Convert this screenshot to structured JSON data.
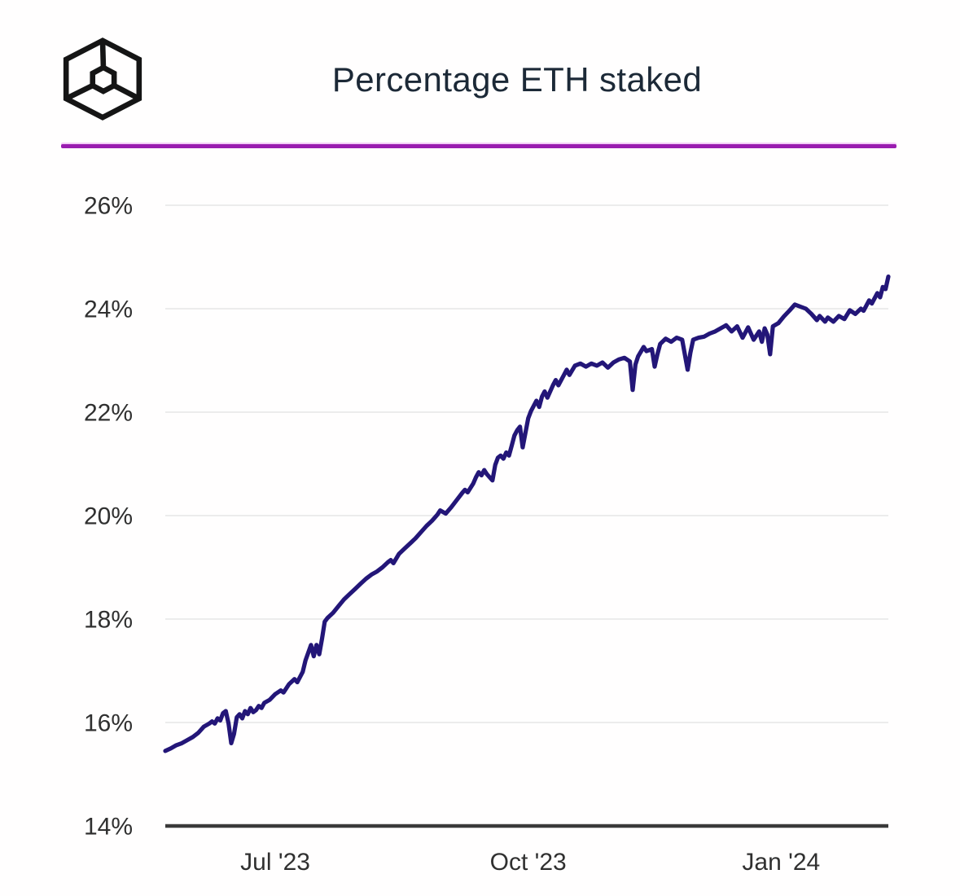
{
  "header": {
    "title": "Percentage ETH staked",
    "logo": "cube-wireframe-icon",
    "divider_color": "#9a1cb0"
  },
  "colors": {
    "background": "#ffffff",
    "title_text": "#1c2937",
    "tick_text": "#303030",
    "gridline": "#ececec",
    "axis_line": "#3a3a3a",
    "series_line": "#231678"
  },
  "chart_data": {
    "type": "line",
    "title": "Percentage ETH staked",
    "xlabel": "",
    "ylabel": "",
    "grid": "horizontal-only",
    "legend": "none",
    "ylim": [
      14,
      26
    ],
    "xlim": [
      "2023-05-22",
      "2024-02-09"
    ],
    "y_ticks": [
      {
        "value": 14,
        "label": "14%"
      },
      {
        "value": 16,
        "label": "16%"
      },
      {
        "value": 18,
        "label": "18%"
      },
      {
        "value": 20,
        "label": "20%"
      },
      {
        "value": 22,
        "label": "22%"
      },
      {
        "value": 24,
        "label": "24%"
      },
      {
        "value": 26,
        "label": "26%"
      }
    ],
    "x_ticks": [
      {
        "date": "2023-07-01",
        "label": "Jul '23"
      },
      {
        "date": "2023-10-01",
        "label": "Oct '23"
      },
      {
        "date": "2024-01-01",
        "label": "Jan '24"
      }
    ],
    "series": [
      {
        "name": "Percentage ETH staked",
        "color": "#231678",
        "points": [
          [
            "2023-05-22",
            15.45
          ],
          [
            "2023-05-24",
            15.5
          ],
          [
            "2023-05-26",
            15.56
          ],
          [
            "2023-05-28",
            15.6
          ],
          [
            "2023-05-30",
            15.66
          ],
          [
            "2023-06-01",
            15.72
          ],
          [
            "2023-06-03",
            15.8
          ],
          [
            "2023-06-05",
            15.92
          ],
          [
            "2023-06-07",
            15.98
          ],
          [
            "2023-06-08",
            16.02
          ],
          [
            "2023-06-09",
            15.98
          ],
          [
            "2023-06-10",
            16.08
          ],
          [
            "2023-06-11",
            16.04
          ],
          [
            "2023-06-12",
            16.18
          ],
          [
            "2023-06-13",
            16.22
          ],
          [
            "2023-06-14",
            15.98
          ],
          [
            "2023-06-15",
            15.6
          ],
          [
            "2023-06-16",
            15.78
          ],
          [
            "2023-06-17",
            16.1
          ],
          [
            "2023-06-18",
            16.16
          ],
          [
            "2023-06-19",
            16.08
          ],
          [
            "2023-06-20",
            16.22
          ],
          [
            "2023-06-21",
            16.16
          ],
          [
            "2023-06-22",
            16.28
          ],
          [
            "2023-06-23",
            16.2
          ],
          [
            "2023-06-24",
            16.24
          ],
          [
            "2023-06-25",
            16.32
          ],
          [
            "2023-06-26",
            16.28
          ],
          [
            "2023-06-27",
            16.38
          ],
          [
            "2023-06-29",
            16.44
          ],
          [
            "2023-07-01",
            16.55
          ],
          [
            "2023-07-03",
            16.62
          ],
          [
            "2023-07-04",
            16.58
          ],
          [
            "2023-07-06",
            16.74
          ],
          [
            "2023-07-08",
            16.84
          ],
          [
            "2023-07-09",
            16.78
          ],
          [
            "2023-07-11",
            16.98
          ],
          [
            "2023-07-12",
            17.2
          ],
          [
            "2023-07-13",
            17.35
          ],
          [
            "2023-07-14",
            17.5
          ],
          [
            "2023-07-15",
            17.28
          ],
          [
            "2023-07-16",
            17.5
          ],
          [
            "2023-07-17",
            17.32
          ],
          [
            "2023-07-18",
            17.62
          ],
          [
            "2023-07-19",
            17.95
          ],
          [
            "2023-07-20",
            18.02
          ],
          [
            "2023-07-22",
            18.12
          ],
          [
            "2023-07-24",
            18.25
          ],
          [
            "2023-07-26",
            18.38
          ],
          [
            "2023-07-28",
            18.48
          ],
          [
            "2023-07-30",
            18.58
          ],
          [
            "2023-08-01",
            18.68
          ],
          [
            "2023-08-03",
            18.78
          ],
          [
            "2023-08-05",
            18.86
          ],
          [
            "2023-08-07",
            18.92
          ],
          [
            "2023-08-09",
            19.0
          ],
          [
            "2023-08-11",
            19.1
          ],
          [
            "2023-08-12",
            19.14
          ],
          [
            "2023-08-13",
            19.08
          ],
          [
            "2023-08-15",
            19.26
          ],
          [
            "2023-08-17",
            19.36
          ],
          [
            "2023-08-19",
            19.46
          ],
          [
            "2023-08-21",
            19.56
          ],
          [
            "2023-08-23",
            19.68
          ],
          [
            "2023-08-25",
            19.8
          ],
          [
            "2023-08-27",
            19.9
          ],
          [
            "2023-08-29",
            20.02
          ],
          [
            "2023-08-30",
            20.1
          ],
          [
            "2023-09-01",
            20.04
          ],
          [
            "2023-09-03",
            20.16
          ],
          [
            "2023-09-05",
            20.3
          ],
          [
            "2023-09-07",
            20.44
          ],
          [
            "2023-09-08",
            20.5
          ],
          [
            "2023-09-09",
            20.45
          ],
          [
            "2023-09-11",
            20.62
          ],
          [
            "2023-09-12",
            20.74
          ],
          [
            "2023-09-13",
            20.84
          ],
          [
            "2023-09-14",
            20.78
          ],
          [
            "2023-09-15",
            20.88
          ],
          [
            "2023-09-16",
            20.8
          ],
          [
            "2023-09-18",
            20.68
          ],
          [
            "2023-09-19",
            20.98
          ],
          [
            "2023-09-20",
            21.12
          ],
          [
            "2023-09-21",
            21.16
          ],
          [
            "2023-09-22",
            21.1
          ],
          [
            "2023-09-23",
            21.22
          ],
          [
            "2023-09-24",
            21.16
          ],
          [
            "2023-09-25",
            21.35
          ],
          [
            "2023-09-26",
            21.55
          ],
          [
            "2023-09-27",
            21.65
          ],
          [
            "2023-09-28",
            21.72
          ],
          [
            "2023-09-29",
            21.32
          ],
          [
            "2023-09-30",
            21.6
          ],
          [
            "2023-10-01",
            21.88
          ],
          [
            "2023-10-02",
            22.02
          ],
          [
            "2023-10-03",
            22.12
          ],
          [
            "2023-10-04",
            22.22
          ],
          [
            "2023-10-05",
            22.1
          ],
          [
            "2023-10-06",
            22.3
          ],
          [
            "2023-10-07",
            22.4
          ],
          [
            "2023-10-08",
            22.28
          ],
          [
            "2023-10-10",
            22.52
          ],
          [
            "2023-10-11",
            22.62
          ],
          [
            "2023-10-12",
            22.52
          ],
          [
            "2023-10-14",
            22.72
          ],
          [
            "2023-10-15",
            22.82
          ],
          [
            "2023-10-16",
            22.72
          ],
          [
            "2023-10-18",
            22.9
          ],
          [
            "2023-10-20",
            22.94
          ],
          [
            "2023-10-22",
            22.88
          ],
          [
            "2023-10-24",
            22.94
          ],
          [
            "2023-10-26",
            22.9
          ],
          [
            "2023-10-28",
            22.96
          ],
          [
            "2023-10-30",
            22.86
          ],
          [
            "2023-11-01",
            22.96
          ],
          [
            "2023-11-03",
            23.02
          ],
          [
            "2023-11-05",
            23.05
          ],
          [
            "2023-11-07",
            22.98
          ],
          [
            "2023-11-08",
            22.43
          ],
          [
            "2023-11-09",
            22.92
          ],
          [
            "2023-11-10",
            23.08
          ],
          [
            "2023-11-12",
            23.26
          ],
          [
            "2023-11-13",
            23.18
          ],
          [
            "2023-11-15",
            23.22
          ],
          [
            "2023-11-16",
            22.88
          ],
          [
            "2023-11-17",
            23.12
          ],
          [
            "2023-11-18",
            23.32
          ],
          [
            "2023-11-20",
            23.42
          ],
          [
            "2023-11-22",
            23.36
          ],
          [
            "2023-11-24",
            23.44
          ],
          [
            "2023-11-26",
            23.4
          ],
          [
            "2023-11-28",
            22.82
          ],
          [
            "2023-11-29",
            23.15
          ],
          [
            "2023-11-30",
            23.4
          ],
          [
            "2023-12-02",
            23.44
          ],
          [
            "2023-12-04",
            23.46
          ],
          [
            "2023-12-06",
            23.52
          ],
          [
            "2023-12-08",
            23.56
          ],
          [
            "2023-12-10",
            23.62
          ],
          [
            "2023-12-12",
            23.68
          ],
          [
            "2023-12-14",
            23.56
          ],
          [
            "2023-12-16",
            23.66
          ],
          [
            "2023-12-18",
            23.44
          ],
          [
            "2023-12-20",
            23.64
          ],
          [
            "2023-12-22",
            23.4
          ],
          [
            "2023-12-24",
            23.56
          ],
          [
            "2023-12-25",
            23.36
          ],
          [
            "2023-12-26",
            23.62
          ],
          [
            "2023-12-27",
            23.5
          ],
          [
            "2023-12-28",
            23.12
          ],
          [
            "2023-12-29",
            23.66
          ],
          [
            "2023-12-31",
            23.72
          ],
          [
            "2024-01-02",
            23.85
          ],
          [
            "2024-01-04",
            23.96
          ],
          [
            "2024-01-06",
            24.08
          ],
          [
            "2024-01-08",
            24.04
          ],
          [
            "2024-01-10",
            24.0
          ],
          [
            "2024-01-12",
            23.9
          ],
          [
            "2024-01-14",
            23.78
          ],
          [
            "2024-01-15",
            23.86
          ],
          [
            "2024-01-17",
            23.75
          ],
          [
            "2024-01-18",
            23.83
          ],
          [
            "2024-01-20",
            23.75
          ],
          [
            "2024-01-22",
            23.86
          ],
          [
            "2024-01-24",
            23.8
          ],
          [
            "2024-01-26",
            23.97
          ],
          [
            "2024-01-28",
            23.9
          ],
          [
            "2024-01-30",
            24.0
          ],
          [
            "2024-01-31",
            23.96
          ],
          [
            "2024-02-02",
            24.16
          ],
          [
            "2024-02-03",
            24.1
          ],
          [
            "2024-02-05",
            24.3
          ],
          [
            "2024-02-06",
            24.22
          ],
          [
            "2024-02-07",
            24.42
          ],
          [
            "2024-02-08",
            24.38
          ],
          [
            "2024-02-09",
            24.62
          ]
        ]
      }
    ]
  }
}
